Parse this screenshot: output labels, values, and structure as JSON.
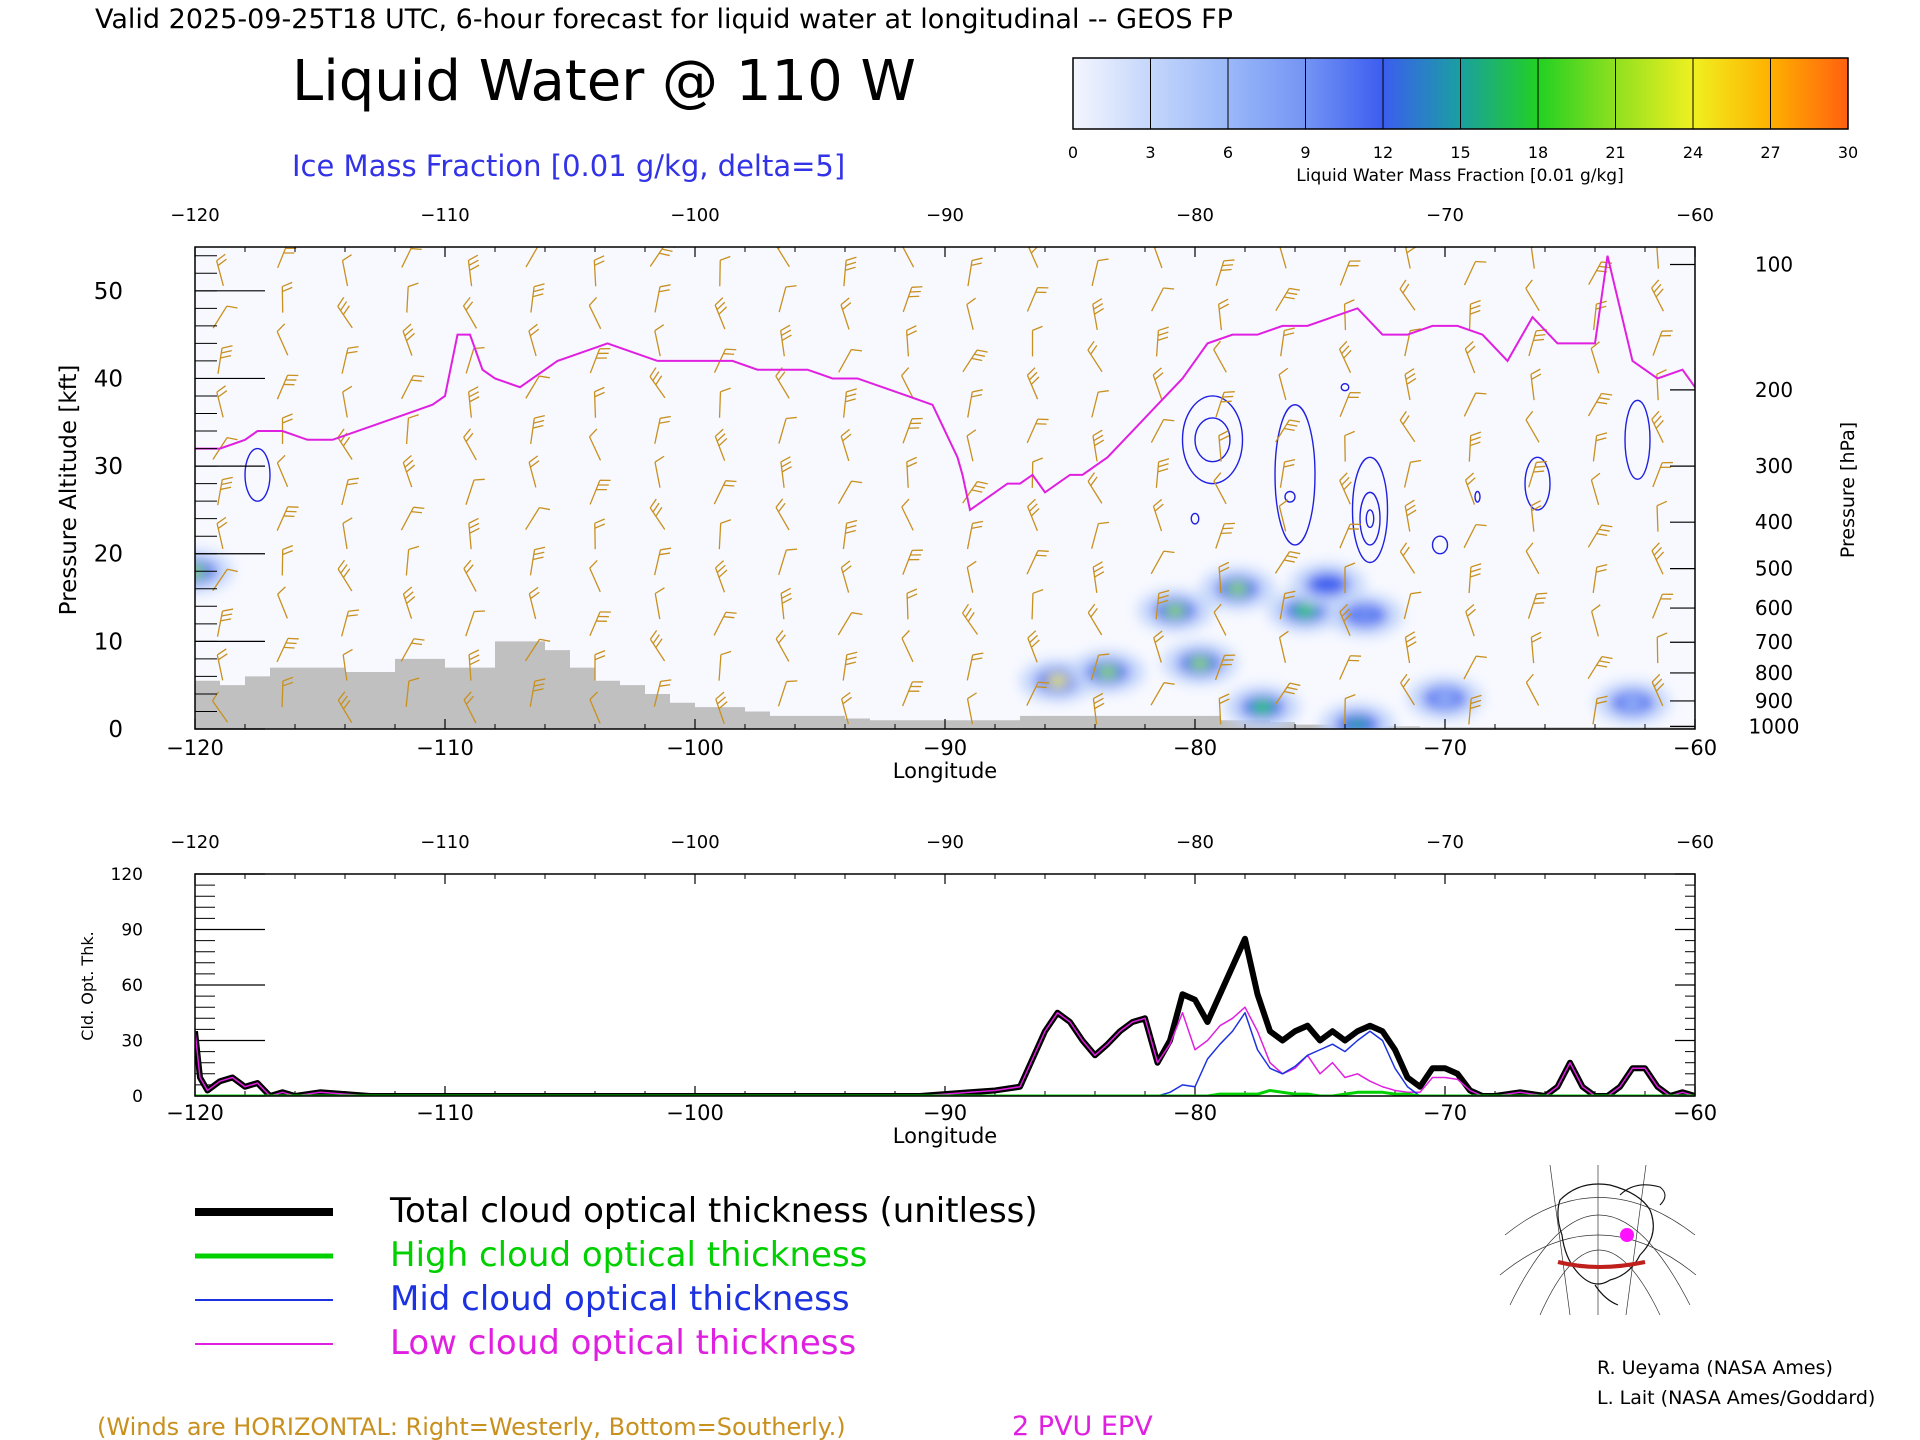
{
  "header": {
    "valid_line": "Valid 2025-09-25T18 UTC, 6-hour forecast for liquid water at longitudinal -- GEOS FP",
    "title": "Liquid Water @ 110 W",
    "subtitle": "Ice Mass Fraction [0.01 g/kg, delta=5]"
  },
  "colorbar": {
    "label": "Liquid Water Mass Fraction [0.01 g/kg]",
    "ticks": [
      "0",
      "3",
      "6",
      "9",
      "12",
      "15",
      "18",
      "21",
      "24",
      "27",
      "30"
    ],
    "colors": [
      "#f4f6fe",
      "#c4d6fb",
      "#9ab8f8",
      "#7494f4",
      "#3b5df0",
      "#1aa0a0",
      "#22d022",
      "#90e020",
      "#f0f020",
      "#ffb000",
      "#ff6010"
    ]
  },
  "chart_data": [
    {
      "type": "heatmap",
      "title": "Liquid Water @ 110 W",
      "xlabel": "Longitude",
      "ylabel_left": "Pressure Altitude [kft]",
      "ylabel_right": "Pressure [hPa]",
      "xlim": [
        -120,
        -60
      ],
      "ylim": [
        0,
        55
      ],
      "x_ticks": [
        "-120",
        "-110",
        "-100",
        "-90",
        "-80",
        "-70",
        "-60"
      ],
      "y_ticks": [
        "0",
        "10",
        "20",
        "30",
        "40",
        "50"
      ],
      "pressure_ticks": [
        {
          "label": "100",
          "kft": 53
        },
        {
          "label": "200",
          "kft": 38.7
        },
        {
          "label": "300",
          "kft": 30
        },
        {
          "label": "400",
          "kft": 23.6
        },
        {
          "label": "500",
          "kft": 18.3
        },
        {
          "label": "600",
          "kft": 13.8
        },
        {
          "label": "700",
          "kft": 9.9
        },
        {
          "label": "800",
          "kft": 6.4
        },
        {
          "label": "900",
          "kft": 3.2
        },
        {
          "label": "1000",
          "kft": 0.3
        }
      ],
      "epv_line": {
        "label": "2 PVU EPV",
        "color": "#e020e0",
        "lon": [
          -120,
          -119,
          -118,
          -117.5,
          -116.5,
          -115.5,
          -114.5,
          -113.5,
          -112.5,
          -111.5,
          -110.5,
          -110,
          -109.5,
          -109,
          -108.5,
          -108,
          -107,
          -106.5,
          -105.5,
          -104.5,
          -103.5,
          -102.5,
          -101.5,
          -100.5,
          -99.5,
          -98.5,
          -97.5,
          -96.5,
          -95.5,
          -94.5,
          -93.5,
          -92.5,
          -91.5,
          -90.5,
          -89.5,
          -89.3,
          -89,
          -88.5,
          -88,
          -87.5,
          -87,
          -86.5,
          -86,
          -85.5,
          -85,
          -84.5,
          -83.5,
          -82.5,
          -81.5,
          -80.5,
          -79.5,
          -78.5,
          -77.5,
          -76.5,
          -75.5,
          -74.5,
          -73.5,
          -72.5,
          -71.5,
          -70.5,
          -69.5,
          -68.5,
          -67.5,
          -66.5,
          -65.5,
          -64.5,
          -64,
          -63.5,
          -63,
          -62.5,
          -61.5,
          -60.5,
          -60
        ],
        "kft": [
          32,
          32,
          33,
          34,
          34,
          33,
          33,
          34,
          35,
          36,
          37,
          38,
          45,
          45,
          41,
          40,
          39,
          40,
          42,
          43,
          44,
          43,
          42,
          42,
          42,
          42,
          41,
          41,
          41,
          40,
          40,
          39,
          38,
          37,
          31,
          29,
          25,
          26,
          27,
          28,
          28,
          29,
          27,
          28,
          29,
          29,
          31,
          34,
          37,
          40,
          44,
          45,
          45,
          46,
          46,
          47,
          48,
          45,
          45,
          46,
          46,
          45,
          42,
          47,
          44,
          44,
          44,
          54,
          48,
          42,
          40,
          41,
          39
        ]
      },
      "terrain": {
        "lon": [
          -120,
          -119,
          -118,
          -117,
          -116,
          -115,
          -114,
          -113,
          -112,
          -111,
          -110,
          -109,
          -108,
          -107,
          -106,
          -105,
          -104,
          -103,
          -102,
          -101,
          -100,
          -99,
          -98,
          -97,
          -96,
          -95,
          -94,
          -93,
          -92,
          -91,
          -90,
          -89,
          -88,
          -87,
          -86,
          -85,
          -84,
          -83,
          -82,
          -81,
          -80,
          -79,
          -78,
          -77,
          -76,
          -75,
          -74,
          -73,
          -72,
          -71,
          -70,
          -69,
          -68,
          -67,
          -66,
          -65,
          -64,
          -63,
          -62,
          -61,
          -60
        ],
        "kft": [
          5.5,
          5,
          6,
          7,
          7,
          7,
          6.5,
          6.5,
          8,
          8,
          7,
          7,
          10,
          10,
          9,
          7,
          5.5,
          5,
          4,
          3,
          2.5,
          2.5,
          2,
          1.5,
          1.5,
          1.5,
          1.2,
          1,
          1,
          1,
          1,
          1,
          1,
          1.5,
          1.5,
          1.5,
          1.5,
          1.5,
          1.5,
          1.5,
          1.5,
          1,
          1,
          0.8,
          0.5,
          0.5,
          0.3,
          0.3,
          0.3,
          0.2,
          0.2,
          0.2,
          0.2,
          0.2,
          0.2,
          0.2,
          0.2,
          0.2,
          0.2,
          0.2,
          0.2
        ]
      },
      "liquid_water_blobs": [
        {
          "lon": -120,
          "kft": 18,
          "value": 22
        },
        {
          "lon": -85.5,
          "kft": 5.5,
          "value": 24
        },
        {
          "lon": -83.5,
          "kft": 6.5,
          "value": 22
        },
        {
          "lon": -80.8,
          "kft": 13.5,
          "value": 21
        },
        {
          "lon": -79.8,
          "kft": 7.5,
          "value": 20
        },
        {
          "lon": -78.3,
          "kft": 16,
          "value": 20
        },
        {
          "lon": -77.3,
          "kft": 2.5,
          "value": 18
        },
        {
          "lon": -75.6,
          "kft": 13.5,
          "value": 18
        },
        {
          "lon": -74.7,
          "kft": 16.5,
          "value": 11
        },
        {
          "lon": -73.2,
          "kft": 13,
          "value": 10
        },
        {
          "lon": -73.5,
          "kft": 0.5,
          "value": 16
        },
        {
          "lon": -70,
          "kft": 3.5,
          "value": 7
        },
        {
          "lon": -62.5,
          "kft": 3,
          "value": 6
        }
      ]
    },
    {
      "type": "line",
      "ylabel": "Cld. Opt. Thk.",
      "xlabel": "Longitude",
      "xlim": [
        -120,
        -60
      ],
      "ylim": [
        0,
        120
      ],
      "x_ticks": [
        "-120",
        "-110",
        "-100",
        "-90",
        "-80",
        "-70",
        "-60"
      ],
      "y_ticks": [
        "0",
        "30",
        "60",
        "90",
        "120"
      ],
      "x": [
        -120,
        -119.8,
        -119.5,
        -119,
        -118.5,
        -118,
        -117.5,
        -117,
        -116.5,
        -116,
        -115,
        -114,
        -113,
        -112,
        -100,
        -91,
        -90,
        -89,
        -88,
        -87,
        -86.5,
        -86,
        -85.5,
        -85,
        -84.5,
        -84,
        -83.5,
        -83,
        -82.5,
        -82,
        -81.5,
        -81,
        -80.5,
        -80,
        -79.5,
        -79,
        -78.5,
        -78,
        -77.5,
        -77,
        -76.5,
        -76,
        -75.5,
        -75,
        -74.5,
        -74,
        -73.5,
        -73,
        -72.5,
        -72,
        -71.5,
        -71,
        -70.5,
        -70,
        -69.5,
        -69,
        -68.5,
        -68,
        -67,
        -66,
        -65.5,
        -65,
        -64.5,
        -64,
        -63.5,
        -63,
        -62.5,
        -62,
        -61.5,
        -61,
        -60.5,
        -60
      ],
      "series": [
        {
          "name": "Total cloud optical thickness (unitless)",
          "color": "#000000",
          "values": [
            35,
            10,
            3,
            8,
            10,
            5,
            7,
            0,
            2,
            0,
            2,
            1,
            0,
            0,
            0,
            0,
            1,
            2,
            3,
            5,
            20,
            35,
            45,
            40,
            30,
            22,
            28,
            35,
            40,
            42,
            18,
            30,
            55,
            52,
            40,
            55,
            70,
            85,
            55,
            35,
            30,
            35,
            38,
            30,
            35,
            30,
            35,
            38,
            35,
            25,
            10,
            5,
            15,
            15,
            12,
            3,
            0,
            0,
            2,
            0,
            5,
            18,
            5,
            0,
            0,
            5,
            15,
            15,
            5,
            0,
            2,
            0
          ]
        },
        {
          "name": "High cloud optical thickness",
          "color": "#00d000",
          "values": [
            0,
            0,
            0,
            0,
            0,
            0,
            0,
            0,
            0,
            0,
            0,
            0,
            0,
            0,
            0,
            0,
            0,
            0,
            0,
            0,
            0,
            0,
            0,
            0,
            0,
            0,
            0,
            0,
            0,
            0,
            0,
            0,
            0,
            0,
            0,
            1,
            1,
            1,
            1,
            3,
            2,
            1,
            1,
            0,
            0,
            1,
            2,
            2,
            2,
            1,
            1,
            0,
            0,
            0,
            0,
            0,
            0,
            0,
            0,
            0,
            0,
            0,
            0,
            0,
            0,
            0,
            0,
            0,
            0,
            0,
            0,
            0
          ]
        },
        {
          "name": "Mid cloud optical thickness",
          "color": "#1c32e0",
          "values": [
            0,
            0,
            0,
            0,
            0,
            0,
            0,
            0,
            0,
            0,
            0,
            0,
            0,
            0,
            0,
            0,
            0,
            0,
            0,
            0,
            0,
            0,
            0,
            0,
            0,
            0,
            0,
            0,
            0,
            0,
            0,
            2,
            6,
            5,
            20,
            28,
            35,
            45,
            25,
            15,
            12,
            16,
            22,
            25,
            28,
            24,
            30,
            35,
            30,
            15,
            5,
            0,
            0,
            0,
            0,
            0,
            0,
            0,
            0,
            0,
            0,
            0,
            0,
            0,
            0,
            0,
            0,
            0,
            0,
            0,
            0,
            0
          ]
        },
        {
          "name": "Low cloud optical thickness",
          "color": "#e020e0",
          "values": [
            35,
            10,
            3,
            8,
            10,
            5,
            7,
            0,
            2,
            0,
            2,
            1,
            0,
            0,
            0,
            0,
            1,
            2,
            3,
            5,
            20,
            35,
            45,
            40,
            30,
            22,
            28,
            35,
            40,
            42,
            18,
            28,
            45,
            25,
            30,
            38,
            42,
            48,
            35,
            18,
            12,
            15,
            22,
            12,
            18,
            10,
            12,
            8,
            5,
            3,
            2,
            2,
            10,
            10,
            9,
            3,
            0,
            0,
            2,
            0,
            5,
            18,
            5,
            0,
            0,
            5,
            15,
            15,
            5,
            0,
            2,
            0
          ]
        }
      ]
    }
  ],
  "legend": {
    "items": [
      {
        "label": "Total cloud optical thickness (unitless)",
        "color": "#000000"
      },
      {
        "label": "High cloud optical thickness",
        "color": "#00d000"
      },
      {
        "label": "Mid cloud optical thickness",
        "color": "#1c32e0"
      },
      {
        "label": "Low cloud optical thickness",
        "color": "#e020e0"
      }
    ]
  },
  "footer": {
    "winds_note": "(Winds are HORIZONTAL: Right=Westerly, Bottom=Southerly.)",
    "epv_label": "2 PVU EPV",
    "credit1": "R. Ueyama (NASA Ames)",
    "credit2": "L. Lait (NASA Ames/Goddard)"
  },
  "colors": {
    "winds": "#c8901e",
    "terrain": "#c0c0c0",
    "ice": "#2020e0",
    "subtitle": "#3232e6",
    "epv": "#e020e0"
  }
}
